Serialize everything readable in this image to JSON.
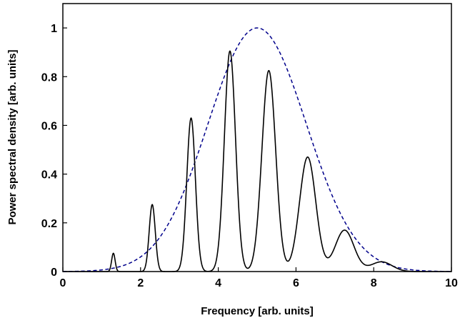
{
  "chart_data": {
    "type": "line",
    "title": "",
    "xlabel": "Frequency [arb. units]",
    "ylabel": "Power spectral density [arb. units]",
    "xlim": [
      0,
      10
    ],
    "ylim": [
      0,
      1.1
    ],
    "xticks": [
      0,
      2,
      4,
      6,
      8,
      10
    ],
    "yticks": [
      0,
      0.2,
      0.4,
      0.6,
      0.8,
      1
    ],
    "xtick_labels": [
      "0",
      "2",
      "4",
      "6",
      "8",
      "10"
    ],
    "ytick_labels": [
      "0",
      "0.2",
      "0.4",
      "0.6",
      "0.8",
      "1"
    ],
    "grid": false,
    "legend": "none",
    "series": [
      {
        "style": "solid",
        "color": "#000000",
        "peaks": [
          {
            "x": 1.3,
            "y": 0.075
          },
          {
            "x": 2.3,
            "y": 0.275
          },
          {
            "x": 3.3,
            "y": 0.63
          },
          {
            "x": 4.3,
            "y": 0.905
          },
          {
            "x": 5.3,
            "y": 0.825
          },
          {
            "x": 6.3,
            "y": 0.47
          },
          {
            "x": 7.25,
            "y": 0.17
          },
          {
            "x": 8.2,
            "y": 0.04
          }
        ]
      },
      {
        "style": "dashed",
        "color": "#00008b",
        "shape": "gaussian envelope",
        "x": [
          0,
          1,
          2,
          3,
          4,
          5,
          6,
          7,
          8,
          9,
          10
        ],
        "y": [
          0.004,
          0.027,
          0.11,
          0.32,
          0.73,
          1.0,
          0.73,
          0.32,
          0.11,
          0.027,
          0.004
        ]
      }
    ]
  }
}
